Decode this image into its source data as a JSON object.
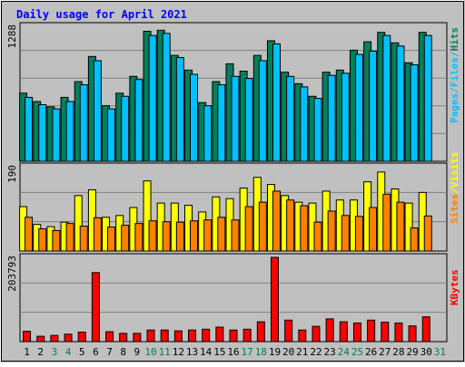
{
  "colors": {
    "frame_bg": "#c0c0c0",
    "plot_bg": "#c0c0c0",
    "title": "#0000ff",
    "hits": "#00805c",
    "files": "#00c0ff",
    "pages": "#00c0ff",
    "sites": "#ff8000",
    "visits": "#ffff00",
    "kbytes": "#ff0000",
    "weekend_day_label": "#008040",
    "weekday_label": "#000000",
    "grid": "#808080"
  },
  "chart_data": {
    "type": "bar",
    "title": "Daily usage for April 2021",
    "x": [
      "1",
      "2",
      "3",
      "4",
      "5",
      "6",
      "7",
      "8",
      "9",
      "10",
      "11",
      "12",
      "13",
      "14",
      "15",
      "16",
      "17",
      "18",
      "19",
      "20",
      "21",
      "22",
      "23",
      "24",
      "25",
      "26",
      "27",
      "28",
      "29",
      "30",
      "31"
    ],
    "x_weekend": [
      false,
      false,
      true,
      true,
      false,
      false,
      false,
      false,
      false,
      true,
      true,
      false,
      false,
      false,
      false,
      false,
      true,
      true,
      false,
      false,
      false,
      false,
      false,
      true,
      true,
      false,
      false,
      false,
      false,
      false,
      true
    ],
    "panels": [
      {
        "name": "hits-files-pages",
        "ymax_label": "1288",
        "ymax": 1288,
        "legend": [
          {
            "text": "Pages",
            "color_key": "pages"
          },
          {
            "text": "/",
            "color_key": "files"
          },
          {
            "text": "Files",
            "color_key": "files"
          },
          {
            "text": "/",
            "color_key": "files"
          },
          {
            "text": "Hits",
            "color_key": "hits"
          }
        ],
        "series": [
          {
            "name": "Hits",
            "color_key": "hits",
            "values": [
              650,
              570,
              520,
              610,
              760,
              1000,
              530,
              650,
              810,
              1240,
              1250,
              1010,
              870,
              560,
              760,
              930,
              860,
              1010,
              1150,
              850,
              740,
              620,
              850,
              870,
              1060,
              1140,
              1230,
              1130,
              940,
              1230,
              0
            ]
          },
          {
            "name": "Files",
            "color_key": "files",
            "values": [
              610,
              540,
              500,
              570,
              730,
              960,
              500,
              620,
              780,
              1200,
              1220,
              990,
              830,
              530,
              730,
              810,
              790,
              960,
              1120,
              810,
              710,
              600,
              820,
              840,
              1020,
              1050,
              1200,
              1100,
              920,
              1200,
              0
            ]
          }
        ]
      },
      {
        "name": "sites-visits",
        "ymax_label": "190",
        "ymax": 190,
        "legend": [
          {
            "text": "Sites",
            "color_key": "sites"
          },
          {
            "text": "/",
            "color_key": "visits"
          },
          {
            "text": "Visits",
            "color_key": "visits"
          }
        ],
        "series": [
          {
            "name": "Visits",
            "color_key": "visits",
            "values": [
              100,
              60,
              55,
              65,
              125,
              138,
              76,
              80,
              98,
              158,
              108,
              108,
              103,
              88,
              122,
              118,
              142,
              166,
              150,
              125,
              110,
              108,
              135,
              115,
              115,
              156,
              178,
              140,
              108,
              132,
              0
            ]
          },
          {
            "name": "Sites",
            "color_key": "sites",
            "values": [
              76,
              50,
              46,
              62,
              56,
              75,
              54,
              58,
              62,
              68,
              66,
              65,
              68,
              70,
              76,
              70,
              100,
              110,
              135,
              115,
              102,
              65,
              90,
              80,
              78,
              98,
              128,
              110,
              52,
              79,
              0
            ]
          }
        ]
      },
      {
        "name": "kbytes",
        "ymax_label": "203793",
        "ymax": 203793,
        "legend": [
          {
            "text": "KBytes",
            "color_key": "kbytes"
          }
        ],
        "series": [
          {
            "name": "KBytes",
            "color_key": "kbytes",
            "values": [
              25000,
              13000,
              15000,
              18000,
              23000,
              167000,
              24000,
              20000,
              20000,
              28000,
              28000,
              26000,
              28000,
              30000,
              35000,
              28000,
              30000,
              48000,
              203793,
              52000,
              28000,
              37000,
              55000,
              48000,
              45000,
              52000,
              47000,
              45000,
              38000,
              60000,
              0
            ]
          }
        ]
      }
    ]
  }
}
